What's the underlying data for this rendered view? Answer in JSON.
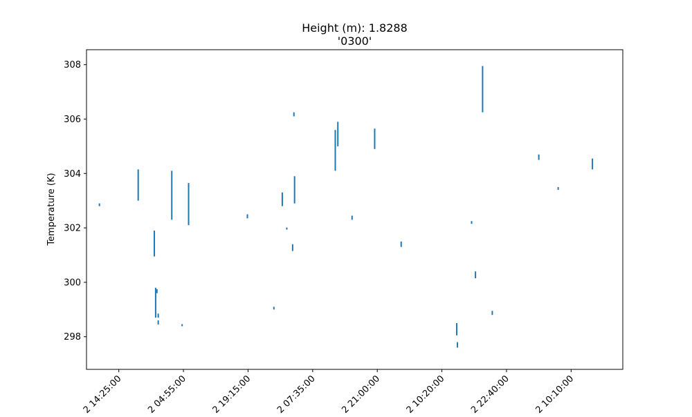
{
  "chart_data": {
    "type": "line",
    "title": "Height (m): 1.8288",
    "subtitle": "'0300'",
    "xlabel": "",
    "ylabel": "Temperature (K)",
    "ylim": [
      296.8,
      308.55
    ],
    "yticks": [
      298,
      300,
      302,
      304,
      306,
      308
    ],
    "xticks": [
      "2 14:25:00",
      "2 04:55:00",
      "2 19:15:00",
      "2 07:35:00",
      "2 21:00:00",
      "2 10:20:00",
      "2 22:40:00",
      "2 10:10:00"
    ],
    "xlim": [
      -0.5,
      7.8
    ],
    "grid": false,
    "line_color": "#1f77b4",
    "series": [
      {
        "segments": [
          {
            "x": -0.3,
            "y": [
              302.8,
              302.9
            ]
          },
          {
            "x": 0.3,
            "y": [
              303.0,
              304.15
            ]
          },
          {
            "x": 0.55,
            "y": [
              300.95,
              301.9
            ]
          },
          {
            "x": 0.57,
            "y": [
              298.7,
              299.8
            ]
          },
          {
            "x": 0.59,
            "y": [
              299.6,
              299.75
            ]
          },
          {
            "x": 0.61,
            "y": [
              298.45,
              298.6
            ]
          },
          {
            "x": 0.61,
            "y": [
              298.7,
              298.85
            ]
          },
          {
            "x": 0.82,
            "y": [
              302.3,
              304.1
            ]
          },
          {
            "x": 0.98,
            "y": [
              298.4,
              298.45
            ]
          },
          {
            "x": 1.08,
            "y": [
              302.1,
              303.65
            ]
          },
          {
            "x": 1.99,
            "y": [
              302.35,
              302.5
            ]
          },
          {
            "x": 2.4,
            "y": [
              299.0,
              299.1
            ]
          },
          {
            "x": 2.53,
            "y": [
              302.8,
              303.3
            ]
          },
          {
            "x": 2.6,
            "y": [
              301.95,
              302.0
            ]
          },
          {
            "x": 2.69,
            "y": [
              301.15,
              301.4
            ]
          },
          {
            "x": 2.71,
            "y": [
              306.1,
              306.25
            ]
          },
          {
            "x": 2.72,
            "y": [
              302.9,
              303.9
            ]
          },
          {
            "x": 3.35,
            "y": [
              304.1,
              305.6
            ]
          },
          {
            "x": 3.39,
            "y": [
              305.0,
              305.9
            ]
          },
          {
            "x": 3.61,
            "y": [
              302.3,
              302.45
            ]
          },
          {
            "x": 3.96,
            "y": [
              304.9,
              305.65
            ]
          },
          {
            "x": 4.37,
            "y": [
              301.3,
              301.5
            ]
          },
          {
            "x": 5.23,
            "y": [
              298.05,
              298.5
            ]
          },
          {
            "x": 5.24,
            "y": [
              297.6,
              297.8
            ]
          },
          {
            "x": 5.46,
            "y": [
              302.15,
              302.25
            ]
          },
          {
            "x": 5.52,
            "y": [
              300.15,
              300.4
            ]
          },
          {
            "x": 5.63,
            "y": [
              306.25,
              307.95
            ]
          },
          {
            "x": 5.78,
            "y": [
              298.8,
              298.95
            ]
          },
          {
            "x": 6.5,
            "y": [
              304.5,
              304.7
            ]
          },
          {
            "x": 6.8,
            "y": [
              303.4,
              303.5
            ]
          },
          {
            "x": 7.33,
            "y": [
              304.15,
              304.55
            ]
          }
        ]
      }
    ]
  }
}
